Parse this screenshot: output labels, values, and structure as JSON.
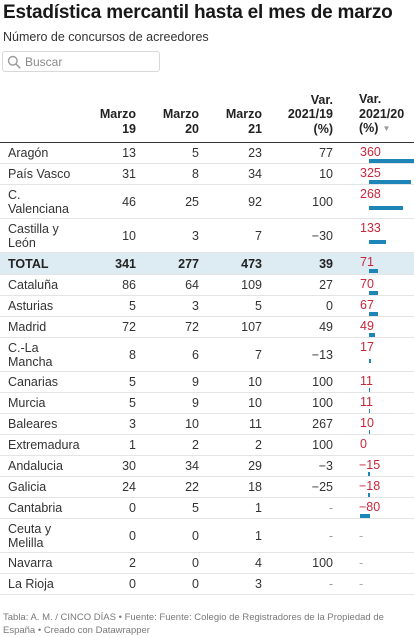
{
  "title": "Estadística mercantil hasta el mes de marzo",
  "subtitle": "Número de concursos de acreedores",
  "search": {
    "placeholder": "Buscar",
    "icon": "search-icon"
  },
  "colors": {
    "bar": "#1d85b7",
    "bar_label": "#c8273b",
    "total_row_bg": "#ddebf3"
  },
  "chart_data": {
    "type": "table",
    "title": "Estadística mercantil hasta el mes de marzo",
    "subtitle": "Número de concursos de acreedores",
    "columns": [
      "",
      "Marzo 19",
      "Marzo 20",
      "Marzo 21",
      "Var. 2021/19 (%)",
      "Var. 2021/20 (%)"
    ],
    "sorted_by": "Var. 2021/20 (%)",
    "sort_order": "descending",
    "bar_column": "Var. 2021/20 (%)",
    "bar_range": [
      -80,
      360
    ],
    "rows": [
      {
        "name": "Aragón",
        "m19": "13",
        "m20": "5",
        "m21": "23",
        "v19": "77",
        "v20": "360",
        "v20_value": 360
      },
      {
        "name": "País Vasco",
        "m19": "31",
        "m20": "8",
        "m21": "34",
        "v19": "10",
        "v20": "325",
        "v20_value": 325
      },
      {
        "name": "C. Valenciana",
        "m19": "46",
        "m20": "25",
        "m21": "92",
        "v19": "100",
        "v20": "268",
        "v20_value": 268
      },
      {
        "name": "Castilla y León",
        "m19": "10",
        "m20": "3",
        "m21": "7",
        "v19": "−30",
        "v20": "133",
        "v20_value": 133
      },
      {
        "name": "TOTAL",
        "m19": "341",
        "m20": "277",
        "m21": "473",
        "v19": "39",
        "v20": "71",
        "v20_value": 71,
        "highlight": true
      },
      {
        "name": "Cataluña",
        "m19": "86",
        "m20": "64",
        "m21": "109",
        "v19": "27",
        "v20": "70",
        "v20_value": 70
      },
      {
        "name": "Asturias",
        "m19": "5",
        "m20": "3",
        "m21": "5",
        "v19": "0",
        "v20": "67",
        "v20_value": 67
      },
      {
        "name": "Madrid",
        "m19": "72",
        "m20": "72",
        "m21": "107",
        "v19": "49",
        "v20": "49",
        "v20_value": 49
      },
      {
        "name": "C.-La Mancha",
        "m19": "8",
        "m20": "6",
        "m21": "7",
        "v19": "−13",
        "v20": "17",
        "v20_value": 17
      },
      {
        "name": "Canarias",
        "m19": "5",
        "m20": "9",
        "m21": "10",
        "v19": "100",
        "v20": "11",
        "v20_value": 11
      },
      {
        "name": "Murcia",
        "m19": "5",
        "m20": "9",
        "m21": "10",
        "v19": "100",
        "v20": "11",
        "v20_value": 11
      },
      {
        "name": "Baleares",
        "m19": "3",
        "m20": "10",
        "m21": "11",
        "v19": "267",
        "v20": "10",
        "v20_value": 10
      },
      {
        "name": "Extremadura",
        "m19": "1",
        "m20": "2",
        "m21": "2",
        "v19": "100",
        "v20": "0",
        "v20_value": 0
      },
      {
        "name": "Andalucia",
        "m19": "30",
        "m20": "34",
        "m21": "29",
        "v19": "−3",
        "v20": "−15",
        "v20_value": -15
      },
      {
        "name": "Galicia",
        "m19": "24",
        "m20": "22",
        "m21": "18",
        "v19": "−25",
        "v20": "−18",
        "v20_value": -18
      },
      {
        "name": "Cantabria",
        "m19": "0",
        "m20": "5",
        "m21": "1",
        "v19": "-",
        "v20": "−80",
        "v20_value": -80
      },
      {
        "name": "Ceuta y Melilla",
        "m19": "0",
        "m20": "0",
        "m21": "1",
        "v19": "-",
        "v20": "-",
        "v20_value": null
      },
      {
        "name": "Navarra",
        "m19": "2",
        "m20": "0",
        "m21": "4",
        "v19": "100",
        "v20": "-",
        "v20_value": null
      },
      {
        "name": "La Rioja",
        "m19": "0",
        "m20": "0",
        "m21": "3",
        "v19": "-",
        "v20": "-",
        "v20_value": null
      }
    ]
  },
  "footer": "Tabla: A. M. / CINCO DÍAS • Fuente: Fuente: Colegio de Registradores de la Propiedad de España • Creado con Datawrapper"
}
